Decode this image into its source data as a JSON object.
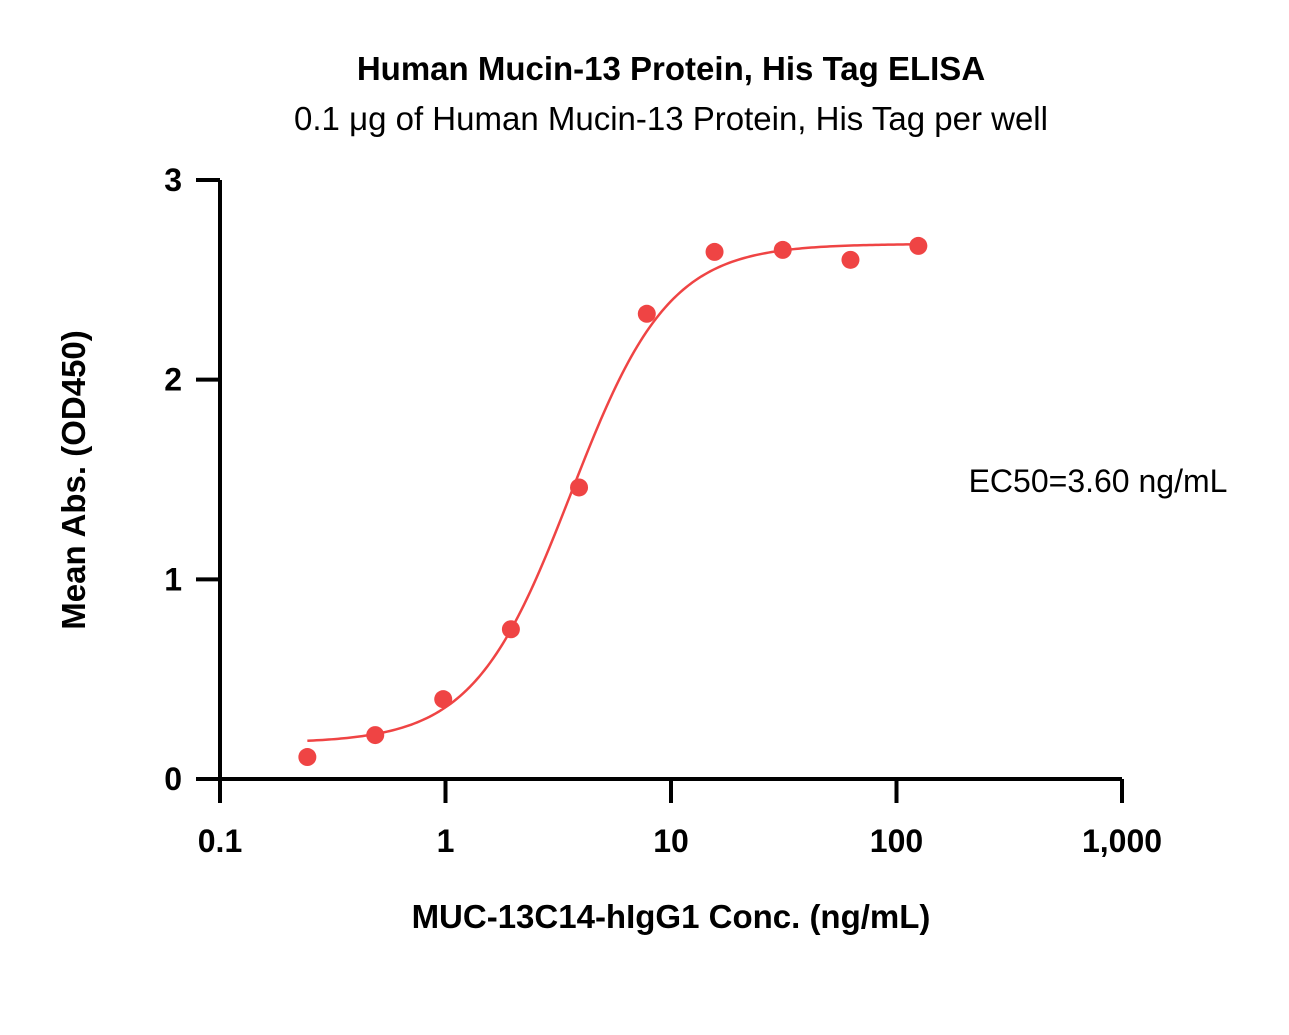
{
  "chart_data": {
    "type": "scatter",
    "title": "Human Mucin-13 Protein, His Tag ELISA",
    "subtitle": "0.1 μg of Human Mucin-13 Protein, His Tag per well",
    "xlabel": "MUC-13C14-hIgG1 Conc. (ng/mL)",
    "ylabel": "Mean Abs. (OD450)",
    "xscale": "log",
    "xlim": [
      0.1,
      1000
    ],
    "ylim": [
      0,
      3
    ],
    "x_ticks": [
      0.1,
      1,
      10,
      100,
      1000
    ],
    "x_tick_labels": [
      "0.1",
      "1",
      "10",
      "100",
      "1,000"
    ],
    "y_ticks": [
      0,
      1,
      2,
      3
    ],
    "y_tick_labels": [
      "0",
      "1",
      "2",
      "3"
    ],
    "grid": false,
    "color": "#ef4444",
    "series": [
      {
        "points": [
          {
            "x": 0.244,
            "y": 0.11
          },
          {
            "x": 0.488,
            "y": 0.22
          },
          {
            "x": 0.977,
            "y": 0.4
          },
          {
            "x": 1.95,
            "y": 0.75
          },
          {
            "x": 3.91,
            "y": 1.46
          },
          {
            "x": 7.81,
            "y": 2.33
          },
          {
            "x": 15.6,
            "y": 2.64
          },
          {
            "x": 31.3,
            "y": 2.65
          },
          {
            "x": 62.5,
            "y": 2.6
          },
          {
            "x": 125,
            "y": 2.67
          }
        ],
        "fit": {
          "model": "4PL",
          "bottom": 0.18,
          "top": 2.68,
          "ec50": 3.6,
          "hill": 2.0,
          "x_range": [
            0.244,
            125
          ]
        }
      }
    ],
    "annotations": [
      {
        "text": "EC50=3.60 ng/mL"
      }
    ]
  }
}
